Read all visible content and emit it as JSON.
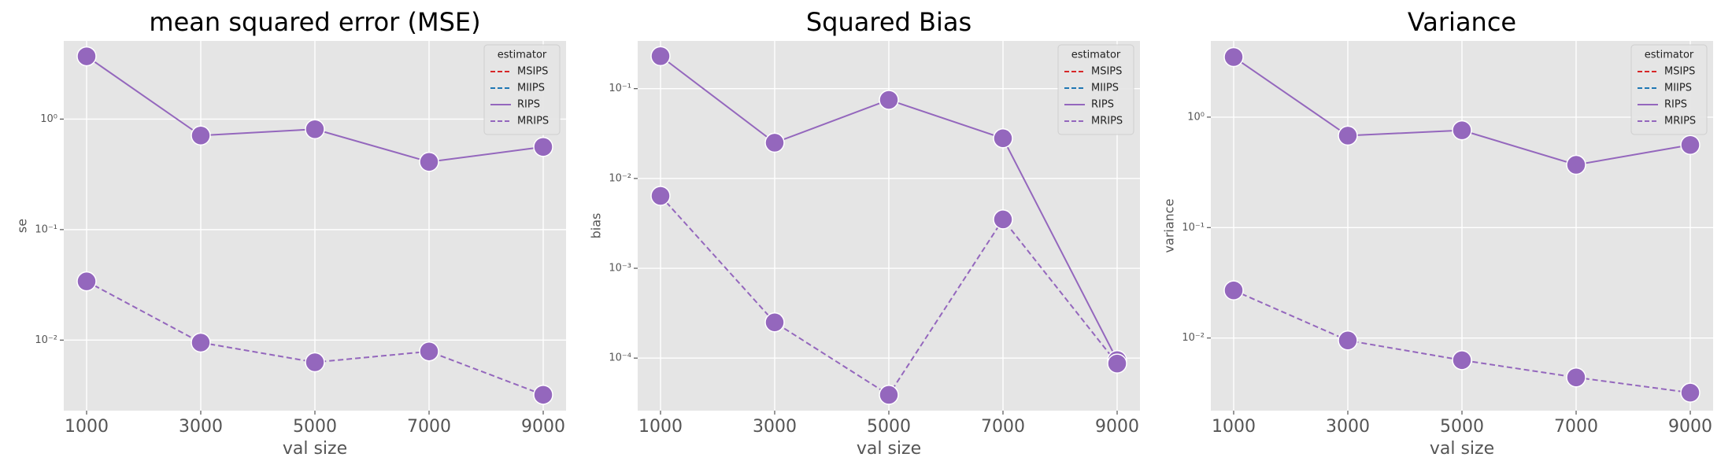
{
  "chart_data": [
    {
      "type": "line",
      "title": "mean squared error (MSE)",
      "xlabel": "val size",
      "ylabel": "se",
      "x": [
        1000,
        3000,
        5000,
        7000,
        9000
      ],
      "xlim": [
        600,
        9400
      ],
      "xticks": [
        1000,
        3000,
        5000,
        7000,
        9000
      ],
      "yscale": "log",
      "ylim": [
        0.0023,
        5.1
      ],
      "yticks": [
        {
          "value": 0.01,
          "label": "10⁻²"
        },
        {
          "value": 0.1,
          "label": "10⁻¹"
        },
        {
          "value": 1,
          "label": "10⁰"
        }
      ],
      "grid": true,
      "legend_title": "estimator",
      "legend_loc": "upper right",
      "series": [
        {
          "name": "MSIPS",
          "color": "#d62728",
          "dash": true,
          "markers": false,
          "values": [
            null,
            null,
            null,
            null,
            null
          ]
        },
        {
          "name": "MIIPS",
          "color": "#1f77b4",
          "dash": true,
          "markers": false,
          "values": [
            null,
            null,
            null,
            null,
            null
          ]
        },
        {
          "name": "RIPS",
          "color": "#9467bd",
          "dash": false,
          "markers": true,
          "values": [
            3.7,
            0.71,
            0.81,
            0.41,
            0.56
          ]
        },
        {
          "name": "MRIPS",
          "color": "#9467bd",
          "dash": true,
          "markers": true,
          "values": [
            0.034,
            0.0095,
            0.0063,
            0.0079,
            0.0032
          ]
        }
      ]
    },
    {
      "type": "line",
      "title": "Squared Bias",
      "xlabel": "val size",
      "ylabel": "bias",
      "x": [
        1000,
        3000,
        5000,
        7000,
        9000
      ],
      "xlim": [
        600,
        9400
      ],
      "xticks": [
        1000,
        3000,
        5000,
        7000,
        9000
      ],
      "yscale": "log",
      "ylim": [
        2.6e-05,
        0.34
      ],
      "yticks": [
        {
          "value": 0.0001,
          "label": "10⁻⁴"
        },
        {
          "value": 0.001,
          "label": "10⁻³"
        },
        {
          "value": 0.01,
          "label": "10⁻²"
        },
        {
          "value": 0.1,
          "label": "10⁻¹"
        }
      ],
      "grid": true,
      "legend_title": "estimator",
      "legend_loc": "upper right",
      "series": [
        {
          "name": "MSIPS",
          "color": "#d62728",
          "dash": true,
          "markers": false,
          "values": [
            null,
            null,
            null,
            null,
            null
          ]
        },
        {
          "name": "MIIPS",
          "color": "#1f77b4",
          "dash": true,
          "markers": false,
          "values": [
            null,
            null,
            null,
            null,
            null
          ]
        },
        {
          "name": "RIPS",
          "color": "#9467bd",
          "dash": false,
          "markers": true,
          "values": [
            0.23,
            0.025,
            0.075,
            0.028,
            9.5e-05
          ]
        },
        {
          "name": "MRIPS",
          "color": "#9467bd",
          "dash": true,
          "markers": true,
          "values": [
            0.0064,
            0.00025,
            3.9e-05,
            0.0035,
            8.7e-05
          ]
        }
      ]
    },
    {
      "type": "line",
      "title": "Variance",
      "xlabel": "val size",
      "ylabel": "variance",
      "x": [
        1000,
        3000,
        5000,
        7000,
        9000
      ],
      "xlim": [
        600,
        9400
      ],
      "xticks": [
        1000,
        3000,
        5000,
        7000,
        9000
      ],
      "yscale": "log",
      "ylim": [
        0.0022,
        4.9
      ],
      "yticks": [
        {
          "value": 0.01,
          "label": "10⁻²"
        },
        {
          "value": 0.1,
          "label": "10⁻¹"
        },
        {
          "value": 1,
          "label": "10⁰"
        }
      ],
      "grid": true,
      "legend_title": "estimator",
      "legend_loc": "upper right",
      "series": [
        {
          "name": "MSIPS",
          "color": "#d62728",
          "dash": true,
          "markers": false,
          "values": [
            null,
            null,
            null,
            null,
            null
          ]
        },
        {
          "name": "MIIPS",
          "color": "#1f77b4",
          "dash": true,
          "markers": false,
          "values": [
            null,
            null,
            null,
            null,
            null
          ]
        },
        {
          "name": "RIPS",
          "color": "#9467bd",
          "dash": false,
          "markers": true,
          "values": [
            3.5,
            0.68,
            0.76,
            0.37,
            0.56
          ]
        },
        {
          "name": "MRIPS",
          "color": "#9467bd",
          "dash": true,
          "markers": true,
          "values": [
            0.027,
            0.0095,
            0.0063,
            0.0044,
            0.0032
          ]
        }
      ]
    }
  ]
}
